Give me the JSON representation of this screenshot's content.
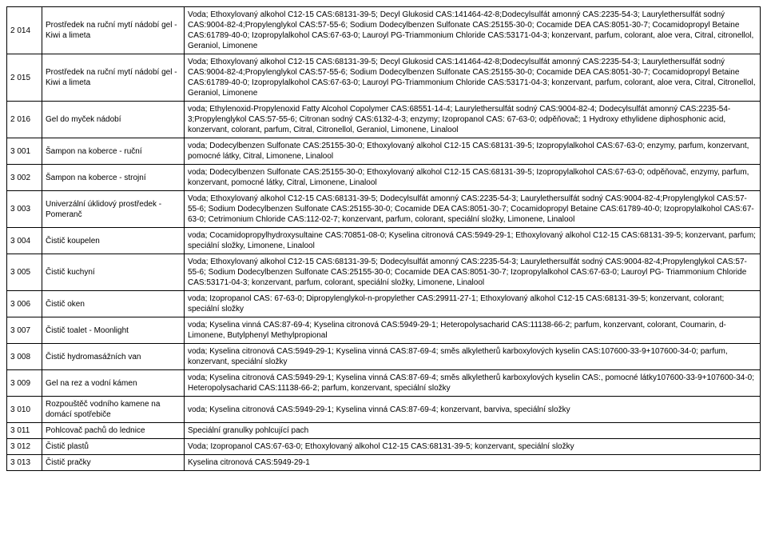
{
  "rows": [
    {
      "code": "2 014",
      "name": "Prostředek na ruční mytí nádobí gel - Kiwi a limeta",
      "desc": "Voda; Ethoxylovaný alkohol C12-15 CAS:68131-39-5; Decyl Glukosid CAS:141464-42-8;Dodecylsulfát amonný CAS:2235-54-3; Laurylethersulfát sodný CAS:9004-82-4;Propylenglykol CAS:57-55-6; Sodium Dodecylbenzen Sulfonate CAS:25155-30-0; Cocamide DEA CAS:8051-30-7; Cocamidopropyl Betaine CAS:61789-40-0;  Izopropylalkohol CAS:67-63-0; Lauroyl PG-Triammonium Chloride CAS:53171-04-3; konzervant, parfum, colorant, aloe vera, Citral, citronellol, Geraniol, Limonene"
    },
    {
      "code": "2 015",
      "name": "Prostředek na ruční mytí nádobí gel - Kiwi a limeta",
      "desc": "Voda; Ethoxylovaný alkohol C12-15 CAS:68131-39-5; Decyl Glukosid CAS:141464-42-8;Dodecylsulfát amonný CAS:2235-54-3; Laurylethersulfát sodný CAS:9004-82-4;Propylenglykol CAS:57-55-6; Sodium Dodecylbenzen Sulfonate CAS:25155-30-0; Cocamide DEA CAS:8051-30-7; Cocamidopropyl Betaine CAS:61789-40-0;  Izopropylalkohol CAS:67-63-0; Lauroyl PG-Triammonium Chloride CAS:53171-04-3; konzervant, parfum, colorant, aloe vera, Citral, Citronellol, Geraniol, Limonene"
    },
    {
      "code": "2 016",
      "name": "Gel do myček nádobí",
      "desc": "voda; Ethylenoxid-Propylenoxid Fatty Alcohol Copolymer CAS:68551-14-4; Laurylethersulfát sodný CAS:9004-82-4; Dodecylsulfát amonný CAS:2235-54-3;Propylenglykol CAS:57-55-6;  Citronan sodný CAS:6132-4-3; enzymy;  Izopropanol CAS: 67-63-0; odpěňovač; 1 Hydroxy ethylidene diphosphonic acid, konzervant, colorant, parfum, Citral, Citronellol, Geraniol, Limonene, Linalool"
    },
    {
      "code": "3 001",
      "name": "Šampon na koberce - ruční",
      "desc": "voda; Dodecylbenzen Sulfonate CAS:25155-30-0;  Ethoxylovaný alkohol C12-15 CAS:68131-39-5;  Izopropylalkohol CAS:67-63-0; enzymy, parfum,  konzervant, pomocné látky, Citral, Limonene, Linalool"
    },
    {
      "code": "3 002",
      "name": "Šampon na koberce - strojní",
      "desc": "voda; Dodecylbenzen Sulfonate CAS:25155-30-0;  Ethoxylovaný alkohol C12-15 CAS:68131-39-5;  Izopropylalkohol CAS:67-63-0; odpěňovač, enzymy, parfum,  konzervant, pomocné látky, Citral, Limonene, Linalool"
    },
    {
      "code": "3 003",
      "name": "Univerzální úklidový prostředek - Pomeranč",
      "desc": "Voda; Ethoxylovaný alkohol C12-15 CAS:68131-39-5; Dodecylsulfát amonný CAS:2235-54-3; Laurylethersulfát sodný CAS:9004-82-4;Propylenglykol CAS:57-55-6; Sodium Dodecylbenzen Sulfonate CAS:25155-30-0; Cocamide DEA CAS:8051-30-7; Cocamidopropyl Betaine CAS:61789-40-0;  Izopropylalkohol CAS:67-63-0; Cetrimonium Chloride CAS:112-02-7; konzervant, parfum, colorant, speciální složky, Limonene, Linalool"
    },
    {
      "code": "3 004",
      "name": "Čistič koupelen",
      "desc": "voda; Cocamidopropylhydroxysultaine CAS:70851-08-0;  Kyselina citronová CAS:5949-29-1;  Ethoxylovaný alkohol C12-15 CAS:68131-39-5; konzervant, parfum; speciální složky, Limonene, Linalool"
    },
    {
      "code": "3 005",
      "name": "Čistič kuchyní",
      "desc": "Voda; Ethoxylovaný alkohol C12-15 CAS:68131-39-5; Dodecylsulfát amonný CAS:2235-54-3; Laurylethersulfát sodný CAS:9004-82-4;Propylenglykol CAS:57-55-6; Sodium Dodecylbenzen Sulfonate CAS:25155-30-0; Cocamide DEA CAS:8051-30-7; Izopropylalkohol CAS:67-63-0; Lauroyl PG- Triammonium Chloride CAS:53171-04-3; konzervant, parfum, colorant, speciální složky, Limonene, Linalool"
    },
    {
      "code": "3 006",
      "name": "Čistič oken",
      "desc": "voda; Izopropanol CAS: 67-63-0; Dipropylenglykol-n-propylether CAS:29911-27-1; Ethoxylovaný alkohol C12-15 CAS:68131-39-5; konzervant, colorant; speciální složky"
    },
    {
      "code": "3 007",
      "name": "Čistič toalet - Moonlight",
      "desc": "voda; Kyselina vinná CAS:87-69-4; Kyselina citronová CAS:5949-29-1;  Heteropolysacharid CAS:11138-66-2; parfum, konzervant, colorant, Coumarin, d-Limonene, Butylphenyl Methylpropional"
    },
    {
      "code": "3 008",
      "name": "Čistič hydromasážních van",
      "desc": "voda;  Kyselina citronová CAS:5949-29-1; Kyselina vinná CAS:87-69-4; směs alkyletherů karboxylových kyselin CAS:107600-33-9+107600-34-0; parfum, konzervant, speciální složky"
    },
    {
      "code": "3 009",
      "name": "Gel na  rez a vodní kámen",
      "desc": "voda;  Kyselina citronová CAS:5949-29-1; Kyselina vinná CAS:87-69-4; směs alkyletherů karboxylových kyselin CAS:, pomocné látky107600-33-9+107600-34-0; Heteropolysacharid CAS:11138-66-2; parfum, konzervant, speciální složky"
    },
    {
      "code": "3 010",
      "name": "Rozpouštěč vodního kamene na domácí  spotřebiče",
      "desc": "voda;  Kyselina citronová CAS:5949-29-1; Kyselina vinná CAS:87-69-4; konzervant, barviva, speciální složky"
    },
    {
      "code": "3 011",
      "name": "Pohlcovač pachů do lednice",
      "desc": "Speciální granulky pohlcující pach"
    },
    {
      "code": "3 012",
      "name": "Čistič plastů",
      "desc": "Voda; Izopropanol CAS:67-63-0; Ethoxylovaný alkohol C12-15 CAS:68131-39-5; konzervant, speciální složky"
    },
    {
      "code": "3 013",
      "name": "Čistič pračky",
      "desc": " Kyselina citronová CAS:5949-29-1"
    }
  ]
}
